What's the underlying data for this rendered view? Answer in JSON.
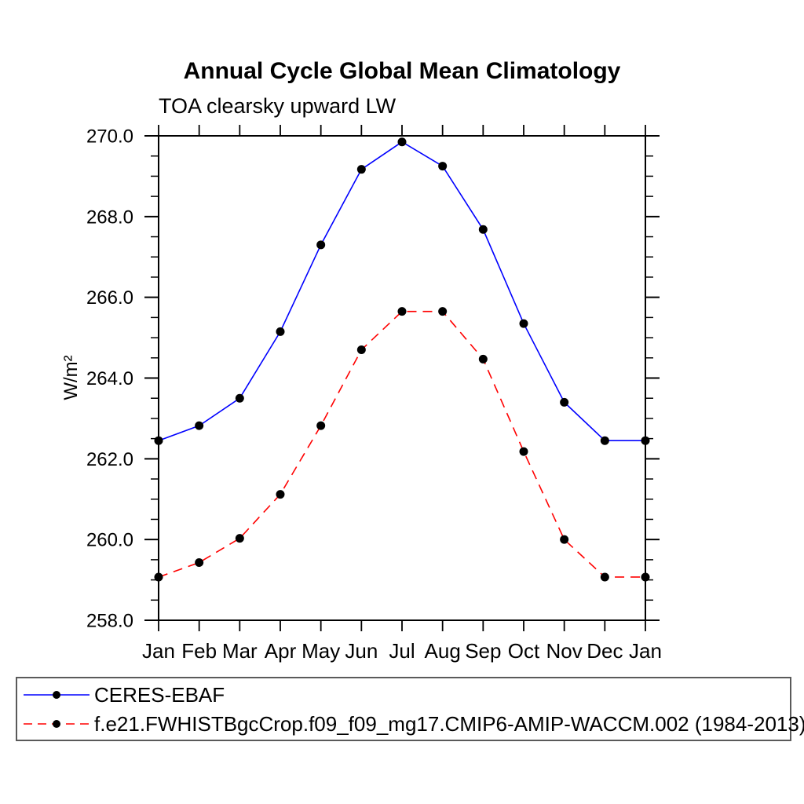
{
  "page": {
    "background": "#ffffff"
  },
  "chart_data": {
    "type": "line",
    "title": "Annual Cycle Global Mean Climatology",
    "subtitle": "TOA clearsky upward LW",
    "ylabel": "W/m²",
    "xlabel": "",
    "x_categories": [
      "Jan",
      "Feb",
      "Mar",
      "Apr",
      "May",
      "Jun",
      "Jul",
      "Aug",
      "Sep",
      "Oct",
      "Nov",
      "Dec",
      "Jan"
    ],
    "ylim": [
      258.0,
      270.0
    ],
    "y_major_step": 2.0,
    "y_minor_step": 0.5,
    "y_tick_labels": [
      "258.0",
      "260.0",
      "262.0",
      "264.0",
      "266.0",
      "268.0",
      "270.0"
    ],
    "grid": false,
    "legend_position": "bottom-left-box",
    "axis_color": "#000000",
    "series": [
      {
        "name": "CERES-EBAF",
        "color": "#0000ff",
        "line_style": "solid",
        "marker": "filled-circle",
        "marker_color": "#000000",
        "values": [
          262.45,
          262.82,
          263.5,
          265.15,
          267.3,
          269.17,
          269.85,
          269.25,
          267.68,
          265.35,
          263.4,
          262.45,
          262.45
        ]
      },
      {
        "name": "f.e21.FWHISTBgcCrop.f09_f09_mg17.CMIP6-AMIP-WACCM.002 (1984-2013)",
        "color": "#ff0000",
        "line_style": "dashed",
        "marker": "filled-circle",
        "marker_color": "#000000",
        "values": [
          259.07,
          259.43,
          260.03,
          261.12,
          262.82,
          264.7,
          265.65,
          265.65,
          264.47,
          262.18,
          260.0,
          259.07,
          259.07
        ]
      }
    ]
  }
}
